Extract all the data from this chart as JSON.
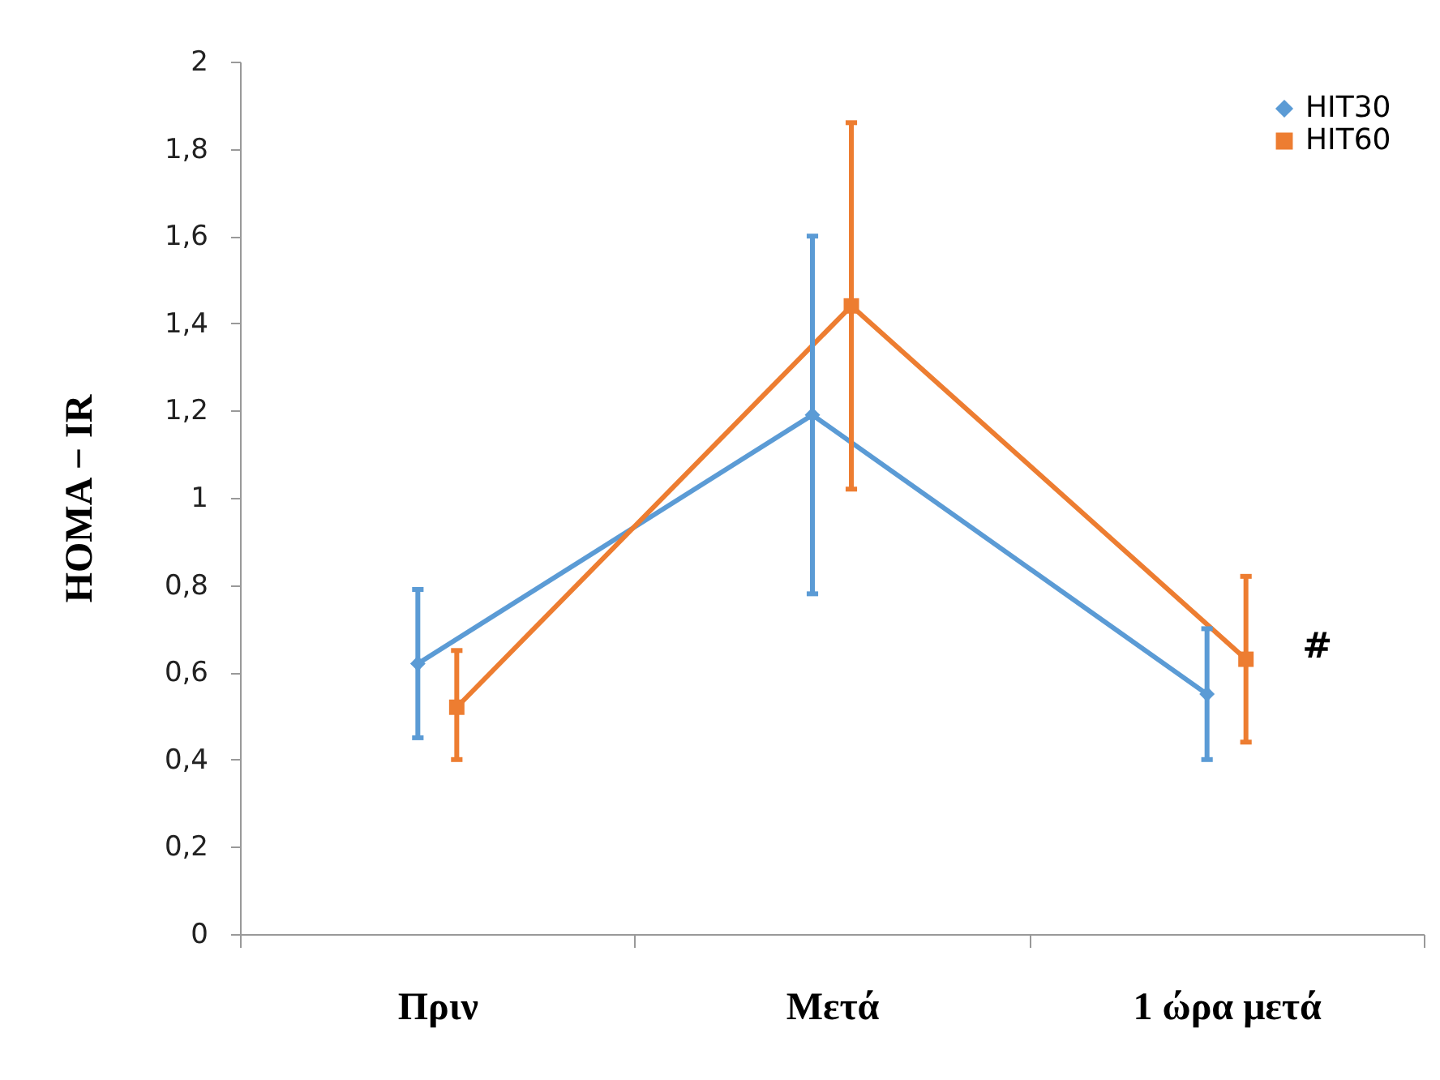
{
  "chart_data": {
    "type": "line",
    "ylabel": "HOMA − IR",
    "categories": [
      "Πριν",
      "Μετά",
      "1 ώρα μετά"
    ],
    "series": [
      {
        "name": "HIT30",
        "color": "#5b9bd5",
        "marker": "diamond",
        "values": [
          0.62,
          1.19,
          0.55
        ],
        "errors": [
          [
            0.45,
            0.79
          ],
          [
            0.78,
            1.6
          ],
          [
            0.4,
            0.7
          ]
        ]
      },
      {
        "name": "HIT60",
        "color": "#ed7d31",
        "marker": "square",
        "values": [
          0.52,
          1.44,
          0.63
        ],
        "errors": [
          [
            0.4,
            0.65
          ],
          [
            1.02,
            1.86
          ],
          [
            0.44,
            0.82
          ]
        ]
      }
    ],
    "ylim": [
      0,
      2
    ],
    "yticks": [
      0,
      {
        "value": 0.2,
        "label": "0,2"
      },
      {
        "value": 0.4,
        "label": "0,4"
      },
      {
        "value": 0.6,
        "label": "0,6"
      },
      {
        "value": 0.8,
        "label": "0,8"
      },
      1,
      {
        "value": 1.2,
        "label": "1,2"
      },
      {
        "value": 1.4,
        "label": "1,4"
      },
      {
        "value": 1.6,
        "label": "1,6"
      },
      {
        "value": 1.8,
        "label": "1,8"
      },
      2
    ],
    "annotations": [
      {
        "text": "#",
        "x": "1 ώρα μετά",
        "y": 0.66
      }
    ],
    "legend": "top right",
    "grid": false,
    "line_style": "solid"
  }
}
